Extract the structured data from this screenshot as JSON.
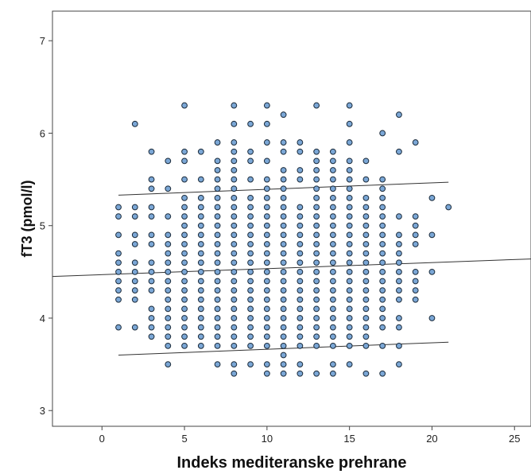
{
  "chart_data": {
    "type": "scatter",
    "title": "",
    "xlabel": "Indeks mediteranske prehrane",
    "ylabel": "fT3 (pmol/l)",
    "xlim": [
      -3,
      26
    ],
    "ylim": [
      2.83,
      7.32
    ],
    "xticks": [
      0,
      5,
      10,
      15,
      20,
      25
    ],
    "yticks": [
      3,
      4,
      5,
      6,
      7
    ],
    "xtick_labels": [
      "0",
      "5",
      "10",
      "15",
      "20",
      "25"
    ],
    "ytick_labels": [
      "3",
      "4",
      "5",
      "6",
      "7"
    ],
    "grid": false,
    "legend": "none",
    "point_color": "#7ba7d6",
    "point_edge_color": "#1a2a3a",
    "line_color": "#333333",
    "points_by_x": [
      {
        "x": 1,
        "y": [
          3.9,
          4.2,
          4.3,
          4.4,
          4.5,
          4.6,
          4.7,
          4.9,
          5.1,
          5.2
        ]
      },
      {
        "x": 2,
        "y": [
          3.9,
          4.2,
          4.3,
          4.4,
          4.5,
          4.6,
          4.8,
          4.9,
          5.1,
          5.2,
          6.1
        ]
      },
      {
        "x": 3,
        "y": [
          3.8,
          3.9,
          4.0,
          4.1,
          4.3,
          4.4,
          4.5,
          4.6,
          4.8,
          4.9,
          5.1,
          5.2,
          5.4,
          5.5,
          5.8
        ]
      },
      {
        "x": 4,
        "y": [
          3.5,
          3.7,
          3.8,
          3.9,
          4.0,
          4.1,
          4.2,
          4.3,
          4.4,
          4.5,
          4.6,
          4.7,
          4.8,
          4.9,
          5.1,
          5.4,
          5.7
        ]
      },
      {
        "x": 5,
        "y": [
          3.7,
          3.8,
          3.9,
          4.0,
          4.1,
          4.2,
          4.3,
          4.4,
          4.5,
          4.6,
          4.7,
          4.8,
          4.9,
          5.0,
          5.1,
          5.2,
          5.3,
          5.5,
          5.7,
          5.8,
          6.3
        ]
      },
      {
        "x": 6,
        "y": [
          3.7,
          3.8,
          3.9,
          4.0,
          4.1,
          4.2,
          4.3,
          4.4,
          4.5,
          4.6,
          4.7,
          4.8,
          4.9,
          5.0,
          5.1,
          5.2,
          5.3,
          5.5,
          5.8
        ]
      },
      {
        "x": 7,
        "y": [
          3.5,
          3.7,
          3.8,
          3.9,
          4.0,
          4.1,
          4.2,
          4.3,
          4.4,
          4.5,
          4.6,
          4.7,
          4.8,
          4.9,
          5.0,
          5.1,
          5.2,
          5.3,
          5.4,
          5.5,
          5.6,
          5.7,
          5.9
        ]
      },
      {
        "x": 8,
        "y": [
          3.4,
          3.5,
          3.7,
          3.8,
          3.9,
          4.0,
          4.1,
          4.2,
          4.3,
          4.4,
          4.5,
          4.6,
          4.7,
          4.8,
          4.9,
          5.0,
          5.1,
          5.2,
          5.3,
          5.4,
          5.5,
          5.6,
          5.7,
          5.8,
          5.9,
          6.1,
          6.3
        ]
      },
      {
        "x": 9,
        "y": [
          3.5,
          3.7,
          3.8,
          3.9,
          4.0,
          4.1,
          4.2,
          4.3,
          4.4,
          4.5,
          4.6,
          4.7,
          4.8,
          4.9,
          5.0,
          5.1,
          5.2,
          5.3,
          5.5,
          5.7,
          5.8,
          6.1
        ]
      },
      {
        "x": 10,
        "y": [
          3.4,
          3.5,
          3.7,
          3.8,
          3.9,
          4.0,
          4.1,
          4.2,
          4.3,
          4.4,
          4.5,
          4.6,
          4.7,
          4.8,
          4.9,
          5.0,
          5.1,
          5.2,
          5.3,
          5.4,
          5.5,
          5.7,
          5.9,
          6.1,
          6.3
        ]
      },
      {
        "x": 11,
        "y": [
          3.4,
          3.5,
          3.6,
          3.7,
          3.8,
          3.9,
          4.0,
          4.1,
          4.2,
          4.3,
          4.4,
          4.5,
          4.6,
          4.7,
          4.8,
          4.9,
          5.0,
          5.1,
          5.2,
          5.3,
          5.4,
          5.5,
          5.6,
          5.8,
          5.9,
          6.2
        ]
      },
      {
        "x": 12,
        "y": [
          3.4,
          3.5,
          3.7,
          3.8,
          3.9,
          4.0,
          4.1,
          4.2,
          4.3,
          4.4,
          4.5,
          4.6,
          4.7,
          4.8,
          4.9,
          5.0,
          5.1,
          5.2,
          5.5,
          5.6,
          5.8,
          5.9
        ]
      },
      {
        "x": 13,
        "y": [
          3.4,
          3.7,
          3.8,
          3.9,
          4.0,
          4.1,
          4.2,
          4.3,
          4.4,
          4.5,
          4.6,
          4.7,
          4.8,
          4.9,
          5.0,
          5.1,
          5.2,
          5.3,
          5.4,
          5.5,
          5.6,
          5.7,
          5.8,
          6.3
        ]
      },
      {
        "x": 14,
        "y": [
          3.4,
          3.5,
          3.7,
          3.8,
          3.9,
          4.0,
          4.1,
          4.2,
          4.3,
          4.4,
          4.5,
          4.6,
          4.7,
          4.8,
          4.9,
          5.0,
          5.1,
          5.2,
          5.3,
          5.4,
          5.5,
          5.6,
          5.7,
          5.8
        ]
      },
      {
        "x": 15,
        "y": [
          3.5,
          3.7,
          3.8,
          3.9,
          4.0,
          4.1,
          4.2,
          4.3,
          4.4,
          4.5,
          4.6,
          4.7,
          4.8,
          4.9,
          5.0,
          5.1,
          5.2,
          5.3,
          5.4,
          5.5,
          5.6,
          5.7,
          5.9,
          6.1,
          6.3
        ]
      },
      {
        "x": 16,
        "y": [
          3.4,
          3.7,
          3.8,
          3.9,
          4.0,
          4.1,
          4.2,
          4.3,
          4.4,
          4.5,
          4.6,
          4.7,
          4.8,
          4.9,
          5.0,
          5.1,
          5.2,
          5.3,
          5.5,
          5.7
        ]
      },
      {
        "x": 17,
        "y": [
          3.4,
          3.7,
          3.9,
          4.0,
          4.1,
          4.2,
          4.3,
          4.4,
          4.5,
          4.6,
          4.7,
          4.8,
          4.9,
          5.0,
          5.1,
          5.2,
          5.3,
          5.4,
          5.5,
          6.0
        ]
      },
      {
        "x": 18,
        "y": [
          3.5,
          3.7,
          3.9,
          4.0,
          4.2,
          4.3,
          4.4,
          4.5,
          4.6,
          4.7,
          4.8,
          4.9,
          5.1,
          5.8,
          6.2
        ]
      },
      {
        "x": 19,
        "y": [
          4.2,
          4.3,
          4.4,
          4.5,
          4.8,
          4.9,
          5.0,
          5.1,
          5.9
        ]
      },
      {
        "x": 20,
        "y": [
          4.0,
          4.5,
          4.9,
          5.3
        ]
      },
      {
        "x": 21,
        "y": [
          5.2
        ]
      }
    ],
    "fit_lines": [
      {
        "x": [
          -3,
          26
        ],
        "y": [
          4.45,
          4.64
        ]
      },
      {
        "x": [
          1,
          21
        ],
        "y": [
          5.33,
          5.47
        ]
      },
      {
        "x": [
          1,
          21
        ],
        "y": [
          3.6,
          3.74
        ]
      }
    ]
  }
}
